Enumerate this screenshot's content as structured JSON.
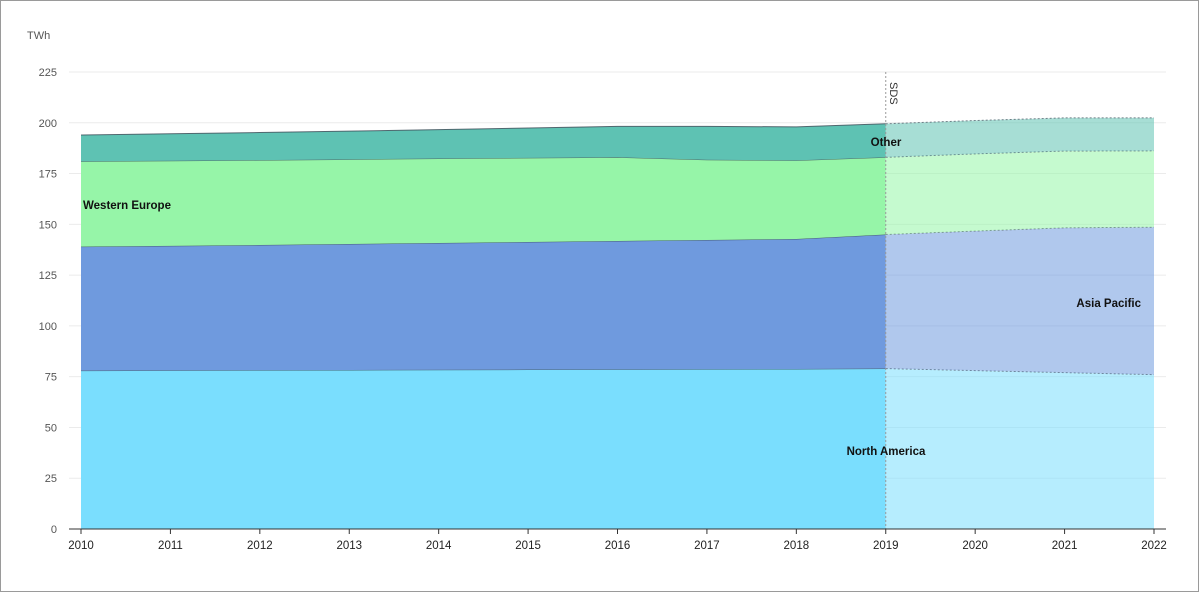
{
  "chart_data": {
    "type": "area",
    "stacked": true,
    "unit_label": "TWh",
    "title": "",
    "xlabel": "",
    "ylabel": "",
    "x": [
      2010,
      2011,
      2012,
      2013,
      2014,
      2015,
      2016,
      2017,
      2018,
      2019,
      2020,
      2021,
      2022
    ],
    "ylim": [
      0,
      225
    ],
    "yticks": [
      0,
      25,
      50,
      75,
      100,
      125,
      150,
      175,
      200,
      225
    ],
    "grid": true,
    "projection_start": 2019,
    "projection_marker_label": "SDS",
    "series": [
      {
        "name": "North America",
        "color": "#7adefe",
        "values": [
          78,
          78.1,
          78.2,
          78.3,
          78.4,
          78.5,
          78.6,
          78.7,
          78.8,
          79,
          78,
          77,
          76
        ]
      },
      {
        "name": "Asia Pacific",
        "color": "#6f9ade",
        "values": [
          61,
          61.3,
          61.6,
          62,
          62.4,
          62.8,
          63.2,
          63.6,
          64,
          66,
          68.7,
          71.3,
          72.6
        ]
      },
      {
        "name": "Western Europe",
        "color": "#96f5a8",
        "values": [
          42,
          41.9,
          41.8,
          41.7,
          41.6,
          41.4,
          41.2,
          39.5,
          38.7,
          38,
          38,
          37.8,
          37.6
        ]
      },
      {
        "name": "Other",
        "color": "#5ec2b3",
        "values": [
          13,
          13.3,
          13.6,
          13.9,
          14.2,
          14.7,
          15.2,
          16.4,
          16.5,
          16.5,
          16.4,
          16.3,
          16.2
        ]
      }
    ]
  }
}
